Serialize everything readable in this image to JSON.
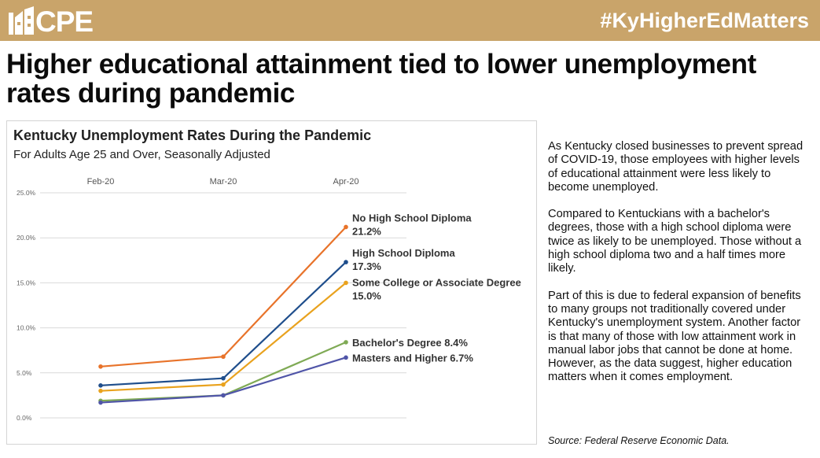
{
  "banner": {
    "logo_text": "CPE",
    "hashtag": "#KyHigherEdMatters",
    "color": "#c9a46a"
  },
  "headline": "Higher educational attainment tied to lower unemployment rates during pandemic",
  "side_text": {
    "p1": "As Kentucky closed businesses to prevent spread of COVID-19, those employees with higher levels of educational attainment were less likely to become unemployed.",
    "p2": "Compared to Kentuckians with a bachelor's degrees, those with a high school diploma were twice as likely to be unemployed. Those without a high school diploma two and a half times more likely.",
    "p3": "Part of this is due to federal expansion of benefits to many groups not traditionally covered under Kentucky's unemployment system. Another factor is that many of those with low attainment work in manual labor jobs that cannot be done at home. However, as the data suggest, higher education matters when it comes employment."
  },
  "source": "Source: Federal Reserve Economic Data.",
  "chart_data": {
    "type": "line",
    "title": "Kentucky Unemployment Rates During the Pandemic",
    "subtitle": "For Adults Age 25 and Over, Seasonally Adjusted",
    "categories": [
      "Feb-20",
      "Mar-20",
      "Apr-20"
    ],
    "ylim": [
      0,
      25
    ],
    "yticks": [
      "0.0%",
      "5.0%",
      "10.0%",
      "15.0%",
      "20.0%",
      "25.0%"
    ],
    "ytick_values": [
      0,
      5,
      10,
      15,
      20,
      25
    ],
    "grid": true,
    "x_axis_position": "top",
    "series": [
      {
        "name": "No High School Diploma",
        "values": [
          5.7,
          6.8,
          21.2
        ],
        "color": "#e8732a",
        "end_label": [
          "No High School Diploma",
          "21.2%"
        ]
      },
      {
        "name": "High School Diploma",
        "values": [
          3.6,
          4.4,
          17.3
        ],
        "color": "#1f4e8c",
        "end_label": [
          "High School Diploma",
          "17.3%"
        ]
      },
      {
        "name": "Some College or Associate Degree",
        "values": [
          3.0,
          3.7,
          15.0
        ],
        "color": "#e9a21e",
        "end_label": [
          "Some College or Associate Degree",
          "15.0%"
        ]
      },
      {
        "name": "Bachelor's Degree",
        "values": [
          1.9,
          2.5,
          8.4
        ],
        "color": "#7faa55",
        "end_label": [
          "Bachelor's Degree 8.4%"
        ]
      },
      {
        "name": "Masters and Higher",
        "values": [
          1.7,
          2.5,
          6.7
        ],
        "color": "#5055a8",
        "end_label": [
          "Masters and Higher 6.7%"
        ]
      }
    ]
  }
}
